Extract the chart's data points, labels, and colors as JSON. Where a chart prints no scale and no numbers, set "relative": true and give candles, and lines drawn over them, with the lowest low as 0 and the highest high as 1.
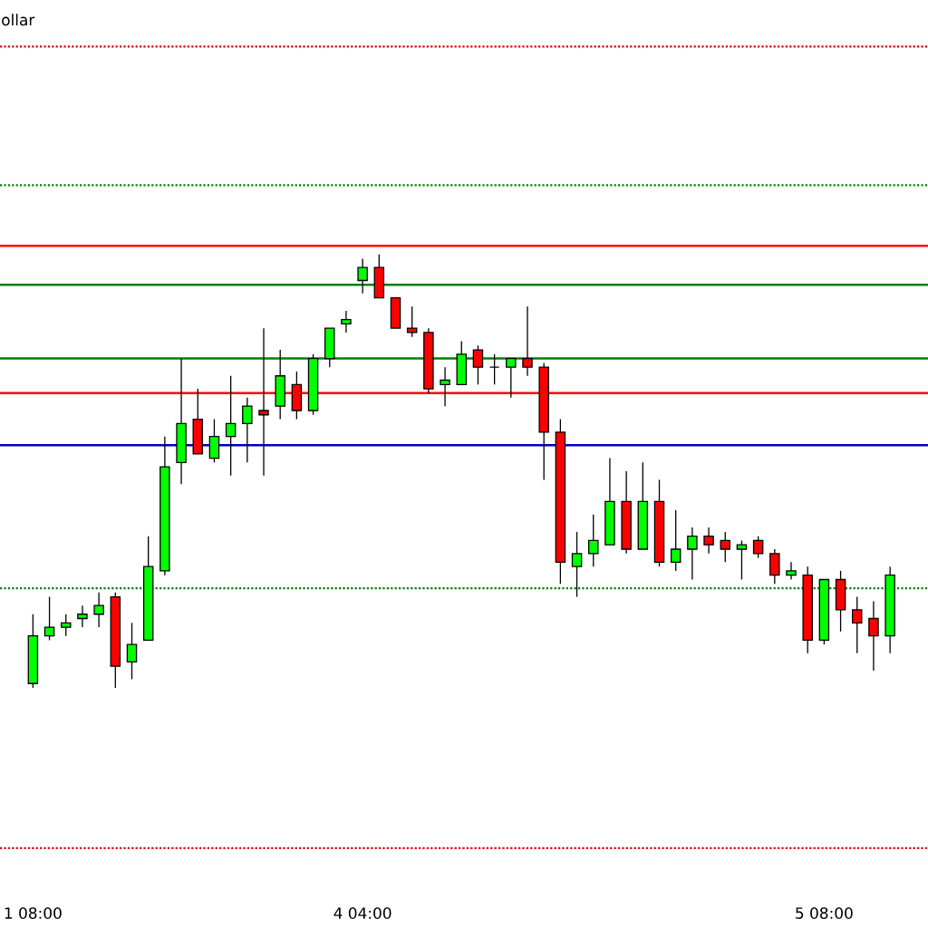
{
  "chart_data": {
    "type": "candlestick",
    "title": "ollar",
    "relative": true,
    "categories": [
      "1 08:00",
      null,
      null,
      null,
      null,
      null,
      null,
      null,
      null,
      null,
      null,
      null,
      null,
      null,
      null,
      null,
      null,
      null,
      null,
      null,
      "4 04:00",
      null,
      null,
      null,
      null,
      null,
      null,
      null,
      null,
      null,
      null,
      null,
      null,
      null,
      null,
      null,
      null,
      null,
      null,
      null,
      null,
      null,
      null,
      null,
      null,
      null,
      null,
      null,
      "5 08:00",
      null,
      null,
      null,
      null
    ],
    "ohlc": [
      [
        0.01,
        0.17,
        0.0,
        0.12
      ],
      [
        0.12,
        0.21,
        0.11,
        0.14
      ],
      [
        0.14,
        0.17,
        0.12,
        0.15
      ],
      [
        0.16,
        0.19,
        0.14,
        0.17
      ],
      [
        0.17,
        0.22,
        0.14,
        0.19
      ],
      [
        0.21,
        0.22,
        0,
        0.05
      ],
      [
        0.06,
        0.15,
        0.02,
        0.1
      ],
      [
        0.11,
        0.35,
        0.11,
        0.28
      ],
      [
        0.27,
        0.58,
        0.26,
        0.51
      ],
      [
        0.52,
        0.76,
        0.47,
        0.61
      ],
      [
        0.62,
        0.69,
        0.54,
        0.54
      ],
      [
        0.53,
        0.62,
        0.52,
        0.58
      ],
      [
        0.58,
        0.72,
        0.49,
        0.61
      ],
      [
        0.61,
        0.67,
        0.52,
        0.65
      ],
      [
        0.64,
        0.83,
        0.49,
        0.63
      ],
      [
        0.65,
        0.78,
        0.62,
        0.72
      ],
      [
        0.7,
        0.73,
        0.62,
        0.64
      ],
      [
        0.64,
        0.77,
        0.63,
        0.76
      ],
      [
        0.76,
        0.83,
        0.74,
        0.83
      ],
      [
        0.84,
        0.87,
        0.82,
        0.85
      ],
      [
        0.94,
        0.99,
        0.91,
        0.97
      ],
      [
        0.97,
        1,
        0.9,
        0.9
      ],
      [
        0.9,
        0.9,
        0.83,
        0.83
      ],
      [
        0.83,
        0.88,
        0.81,
        0.82
      ],
      [
        0.82,
        0.83,
        0.68,
        0.69
      ],
      [
        0.7,
        0.74,
        0.65,
        0.71
      ],
      [
        0.7,
        0.8,
        0.7,
        0.77
      ],
      [
        0.78,
        0.79,
        0.7,
        0.74
      ],
      [
        0.74,
        0.77,
        0.7,
        0.74
      ],
      [
        0.74,
        0.76,
        0.67,
        0.76
      ],
      [
        0.76,
        0.88,
        0.72,
        0.74
      ],
      [
        0.74,
        0.75,
        0.48,
        0.59
      ],
      [
        0.59,
        0.62,
        0.24,
        0.29
      ],
      [
        0.28,
        0.36,
        0.21,
        0.31
      ],
      [
        0.31,
        0.4,
        0.28,
        0.34
      ],
      [
        0.33,
        0.53,
        0.33,
        0.43
      ],
      [
        0.43,
        0.5,
        0.31,
        0.32
      ],
      [
        0.32,
        0.52,
        0.32,
        0.43
      ],
      [
        0.43,
        0.48,
        0.28,
        0.29
      ],
      [
        0.29,
        0.41,
        0.27,
        0.32
      ],
      [
        0.32,
        0.37,
        0.25,
        0.35
      ],
      [
        0.35,
        0.37,
        0.31,
        0.33
      ],
      [
        0.34,
        0.36,
        0.29,
        0.32
      ],
      [
        0.32,
        0.34,
        0.25,
        0.33
      ],
      [
        0.34,
        0.35,
        0.3,
        0.31
      ],
      [
        0.31,
        0.32,
        0.24,
        0.26
      ],
      [
        0.26,
        0.29,
        0.25,
        0.27
      ],
      [
        0.26,
        0.28,
        0.08,
        0.11
      ],
      [
        0.11,
        0.25,
        0.1,
        0.25
      ],
      [
        0.25,
        0.27,
        0.13,
        0.18
      ],
      [
        0.18,
        0.21,
        0.08,
        0.15
      ],
      [
        0.16,
        0.2,
        0.04,
        0.12
      ],
      [
        0.12,
        0.28,
        0.08,
        0.26
      ]
    ],
    "colors": [
      "#00ff00",
      "#00ff00",
      "#00ff00",
      "#00ff00",
      "#00ff00",
      "#ff0000",
      "#00ff00",
      "#00ff00",
      "#00ff00",
      "#00ff00",
      "#ff0000",
      "#00ff00",
      "#00ff00",
      "#00ff00",
      "#ff0000",
      "#00ff00",
      "#ff0000",
      "#00ff00",
      "#00ff00",
      "#00ff00",
      "#00ff00",
      "#ff0000",
      "#ff0000",
      "#ff0000",
      "#ff0000",
      "#00ff00",
      "#00ff00",
      "#ff0000",
      "#000000",
      "#00ff00",
      "#ff0000",
      "#ff0000",
      "#ff0000",
      "#00ff00",
      "#00ff00",
      "#00ff00",
      "#ff0000",
      "#00ff00",
      "#ff0000",
      "#00ff00",
      "#00ff00",
      "#ff0000",
      "#ff0000",
      "#00ff00",
      "#ff0000",
      "#ff0000",
      "#00ff00",
      "#ff0000",
      "#00ff00",
      "#ff0000",
      "#ff0000",
      "#ff0000",
      "#00ff00"
    ],
    "ref_lines": [
      {
        "axis": "y",
        "value": 1.48,
        "color": "#e00000",
        "line_style": "dotted"
      },
      {
        "axis": "y",
        "value": 1.16,
        "color": "#008000",
        "line_style": "dotted"
      },
      {
        "axis": "y",
        "value": 1.02,
        "color": "#ff0000",
        "line_style": "solid"
      },
      {
        "axis": "y",
        "value": 0.93,
        "color": "#008000",
        "line_style": "solid"
      },
      {
        "axis": "y",
        "value": 0.76,
        "color": "#008000",
        "line_style": "solid"
      },
      {
        "axis": "y",
        "value": 0.68,
        "color": "#ff0000",
        "line_style": "solid"
      },
      {
        "axis": "y",
        "value": 0.56,
        "color": "#0000c0",
        "line_style": "solid"
      },
      {
        "axis": "y",
        "value": 0.23,
        "color": "#008000",
        "line_style": "dotted"
      },
      {
        "axis": "y",
        "value": -0.37,
        "color": "#e00000",
        "line_style": "dotted"
      }
    ]
  }
}
